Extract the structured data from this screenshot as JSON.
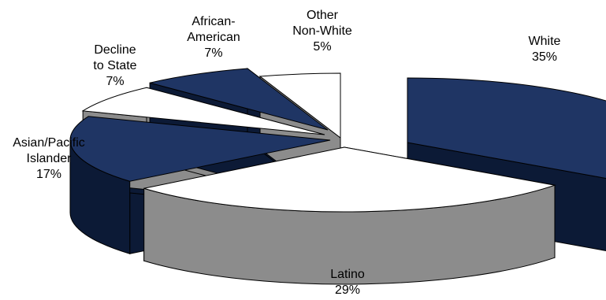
{
  "chart_data": {
    "type": "pie",
    "title": "",
    "slices": [
      {
        "label_lines": [
          "White"
        ],
        "pct_text": "35%",
        "value": 35,
        "color": "#1f3564"
      },
      {
        "label_lines": [
          "Latino"
        ],
        "pct_text": "29%",
        "value": 29,
        "color": "#ffffff"
      },
      {
        "label_lines": [
          "Asian/Pacific",
          "Islander"
        ],
        "pct_text": "17%",
        "value": 17,
        "color": "#1f3564"
      },
      {
        "label_lines": [
          "Decline",
          "to State"
        ],
        "pct_text": "7%",
        "value": 7,
        "color": "#ffffff"
      },
      {
        "label_lines": [
          "African-",
          "American"
        ],
        "pct_text": "7%",
        "value": 7,
        "color": "#1f3564"
      },
      {
        "label_lines": [
          "Other",
          "Non-White"
        ],
        "pct_text": "5%",
        "value": 5,
        "color": "#ffffff"
      }
    ],
    "side_colors": {
      "dark": "#0c1a36",
      "light": "#8c8c8c"
    },
    "style": "3d-exploded-pie",
    "legend": "none"
  }
}
